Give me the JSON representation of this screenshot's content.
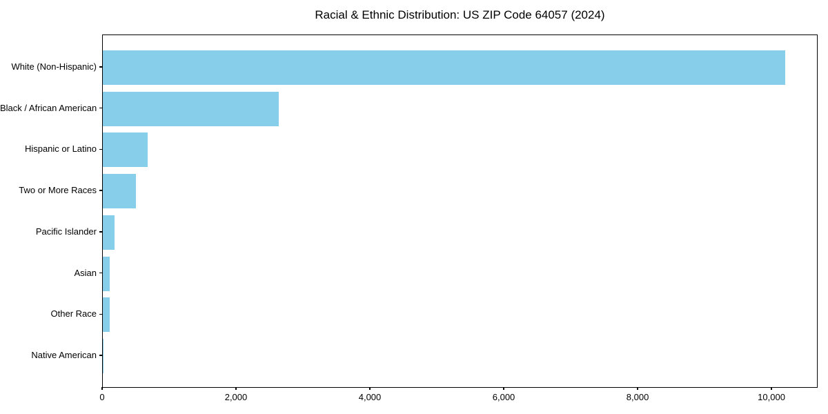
{
  "chart_data": {
    "type": "bar",
    "orientation": "horizontal",
    "title": "Racial & Ethnic Distribution: US ZIP Code 64057 (2024)",
    "categories": [
      "White (Non-Hispanic)",
      "Black / African American",
      "Hispanic or Latino",
      "Two or More Races",
      "Pacific Islander",
      "Asian",
      "Other Race",
      "Native American"
    ],
    "values": [
      10200,
      2630,
      665,
      490,
      180,
      105,
      100,
      8
    ],
    "xlabel": "",
    "ylabel": "",
    "xlim": [
      0,
      10690
    ],
    "xticks": [
      {
        "value": 0,
        "label": "0"
      },
      {
        "value": 2000,
        "label": "2,000"
      },
      {
        "value": 4000,
        "label": "4,000"
      },
      {
        "value": 6000,
        "label": "6,000"
      },
      {
        "value": 8000,
        "label": "8,000"
      },
      {
        "value": 10000,
        "label": "10,000"
      }
    ],
    "bar_color": "#87CEEB",
    "axis_color": "#000000",
    "background_color": "#ffffff",
    "grid": false,
    "legend": "none"
  }
}
